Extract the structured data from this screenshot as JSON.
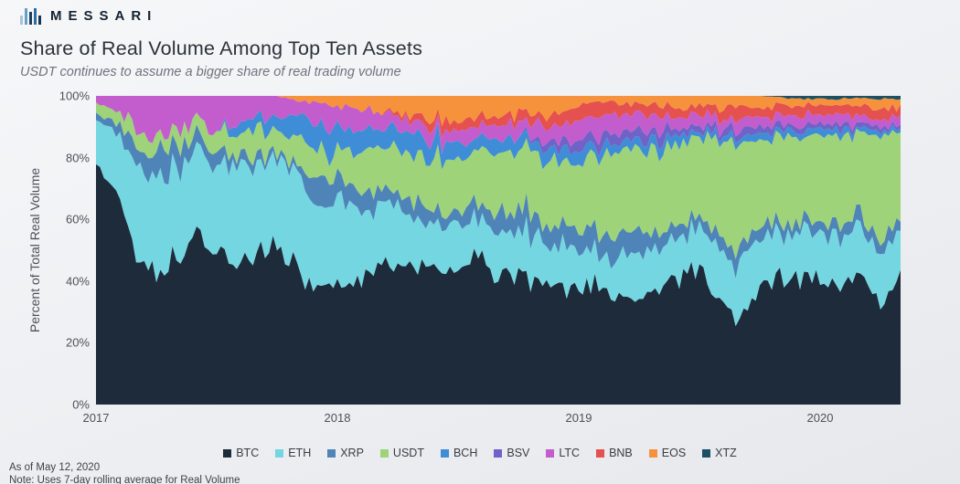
{
  "header": {
    "brand": "MESSARI",
    "title": "Share of Real Volume Among Top Ten Assets",
    "subtitle": "USDT continues to assume a bigger share of real trading volume"
  },
  "footer": {
    "as_of": "As of May 12, 2020",
    "note": "Note: Uses 7-day rolling average for Real Volume"
  },
  "chart_data": {
    "type": "area",
    "stacked": true,
    "normalized": "each column sums to 100%",
    "title": "Share of Real Volume Among Top Ten Assets",
    "subtitle": "USDT continues to assume a bigger share of real trading volume",
    "ylabel": "Percent of Total Real Volume",
    "ylim": [
      0,
      100
    ],
    "y_tick_labels": [
      "100%",
      "80%",
      "60%",
      "40%",
      "20%",
      "0%"
    ],
    "x_tick_labels": [
      "2017",
      "2018",
      "2019",
      "2020"
    ],
    "x_tick_month_index": [
      0,
      12,
      24,
      36
    ],
    "grid": false,
    "legend_position": "bottom",
    "x_interval": "monthly",
    "x_months": [
      "2017-01",
      "2017-02",
      "2017-03",
      "2017-04",
      "2017-05",
      "2017-06",
      "2017-07",
      "2017-08",
      "2017-09",
      "2017-10",
      "2017-11",
      "2017-12",
      "2018-01",
      "2018-02",
      "2018-03",
      "2018-04",
      "2018-05",
      "2018-06",
      "2018-07",
      "2018-08",
      "2018-09",
      "2018-10",
      "2018-11",
      "2018-12",
      "2019-01",
      "2019-02",
      "2019-03",
      "2019-04",
      "2019-05",
      "2019-06",
      "2019-07",
      "2019-08",
      "2019-09",
      "2019-10",
      "2019-11",
      "2019-12",
      "2020-01",
      "2020-02",
      "2020-03",
      "2020-04",
      "2020-05"
    ],
    "series": [
      {
        "name": "BTC",
        "color": "#1d2b3a",
        "values": [
          79,
          70,
          48,
          42,
          45,
          55,
          50,
          46,
          48,
          50,
          45,
          40,
          36,
          41,
          45,
          46,
          45,
          44,
          45,
          45,
          42,
          42,
          40,
          38,
          38,
          38,
          36,
          35,
          38,
          42,
          45,
          33,
          28,
          38,
          41,
          42,
          40,
          38,
          45,
          31,
          44
        ]
      },
      {
        "name": "ETH",
        "color": "#74d6e0",
        "values": [
          14,
          19,
          30,
          32,
          30,
          26,
          30,
          32,
          30,
          30,
          33,
          28,
          28,
          25,
          20,
          18,
          16,
          14,
          15,
          14,
          15,
          14,
          13,
          13,
          12,
          12,
          13,
          14,
          14,
          14,
          13,
          15,
          18,
          16,
          15,
          14,
          15,
          16,
          15,
          17,
          13
        ]
      },
      {
        "name": "XRP",
        "color": "#4f84b8",
        "values": [
          2,
          3,
          7,
          8,
          8,
          5,
          4,
          3,
          3,
          2,
          2,
          8,
          10,
          6,
          5,
          5,
          5,
          5,
          4,
          5,
          6,
          7,
          6,
          6,
          7,
          8,
          7,
          6,
          5,
          4,
          4,
          4,
          5,
          4,
          4,
          3,
          4,
          4,
          4,
          5,
          4
        ]
      },
      {
        "name": "USDT",
        "color": "#9ed37a",
        "values": [
          3,
          4,
          5,
          5,
          5,
          5,
          6,
          7,
          8,
          8,
          9,
          8,
          9,
          12,
          14,
          15,
          16,
          17,
          17,
          18,
          19,
          20,
          21,
          22,
          23,
          24,
          26,
          27,
          26,
          26,
          24,
          32,
          35,
          28,
          28,
          28,
          28,
          29,
          26,
          37,
          28
        ]
      },
      {
        "name": "BCH",
        "color": "#3f8dd6",
        "values": [
          0,
          0,
          0,
          0,
          0,
          0,
          0,
          3,
          4,
          4,
          8,
          8,
          7,
          6,
          6,
          6,
          6,
          6,
          5,
          5,
          5,
          4,
          4,
          4,
          4,
          3,
          3,
          3,
          3,
          3,
          2,
          2,
          2,
          2,
          2,
          2,
          2,
          2,
          1.5,
          1.5,
          1.5
        ]
      },
      {
        "name": "BSV",
        "color": "#7063c8",
        "values": [
          0,
          0,
          0,
          0,
          0,
          0,
          0,
          0,
          0,
          0,
          0,
          0,
          0,
          0,
          0,
          0,
          0,
          0,
          0,
          0,
          0,
          0,
          2,
          3,
          3,
          4,
          3,
          3,
          3,
          2,
          2,
          2,
          3,
          2,
          2,
          2,
          2,
          2,
          1.5,
          1.5,
          1.5
        ]
      },
      {
        "name": "LTC",
        "color": "#c35ccd",
        "values": [
          2,
          4,
          10,
          13,
          12,
          9,
          10,
          10,
          7,
          6,
          6,
          7,
          8,
          7,
          5,
          4,
          4,
          4,
          4,
          4,
          4,
          4,
          5,
          5,
          6,
          7,
          6,
          5,
          5,
          4,
          4,
          3,
          3,
          3,
          3,
          3,
          3,
          3,
          2.5,
          2.5,
          2.5
        ]
      },
      {
        "name": "BNB",
        "color": "#e5514e",
        "values": [
          0,
          0,
          0,
          0,
          0,
          0,
          0,
          0,
          0,
          0,
          0,
          0,
          0,
          0,
          0,
          1,
          2,
          3,
          3,
          3,
          3,
          3,
          3,
          4,
          4,
          5,
          4,
          4,
          3,
          3,
          3,
          3,
          4,
          3,
          3,
          3,
          3,
          3,
          3,
          3.5,
          3
        ]
      },
      {
        "name": "EOS",
        "color": "#f6923c",
        "values": [
          0,
          0,
          0,
          0,
          0,
          0,
          0,
          0,
          0,
          0,
          2,
          2,
          3,
          4,
          5,
          6,
          7,
          8,
          7,
          6,
          6,
          6,
          6,
          5,
          3,
          2,
          2,
          3,
          3,
          4,
          3,
          4,
          3,
          4,
          3,
          2,
          2,
          2,
          2,
          3.5,
          2.5
        ]
      },
      {
        "name": "XTZ",
        "color": "#1c5064",
        "values": [
          0,
          0,
          0,
          0,
          0,
          0,
          0,
          0,
          0,
          0,
          0,
          0,
          0,
          0,
          0,
          0,
          0,
          0,
          0,
          0,
          0,
          0,
          0,
          0,
          0,
          0,
          0,
          0,
          0,
          0,
          0,
          0,
          0,
          0,
          0.5,
          1,
          1,
          1,
          0.5,
          1,
          1
        ]
      }
    ]
  }
}
